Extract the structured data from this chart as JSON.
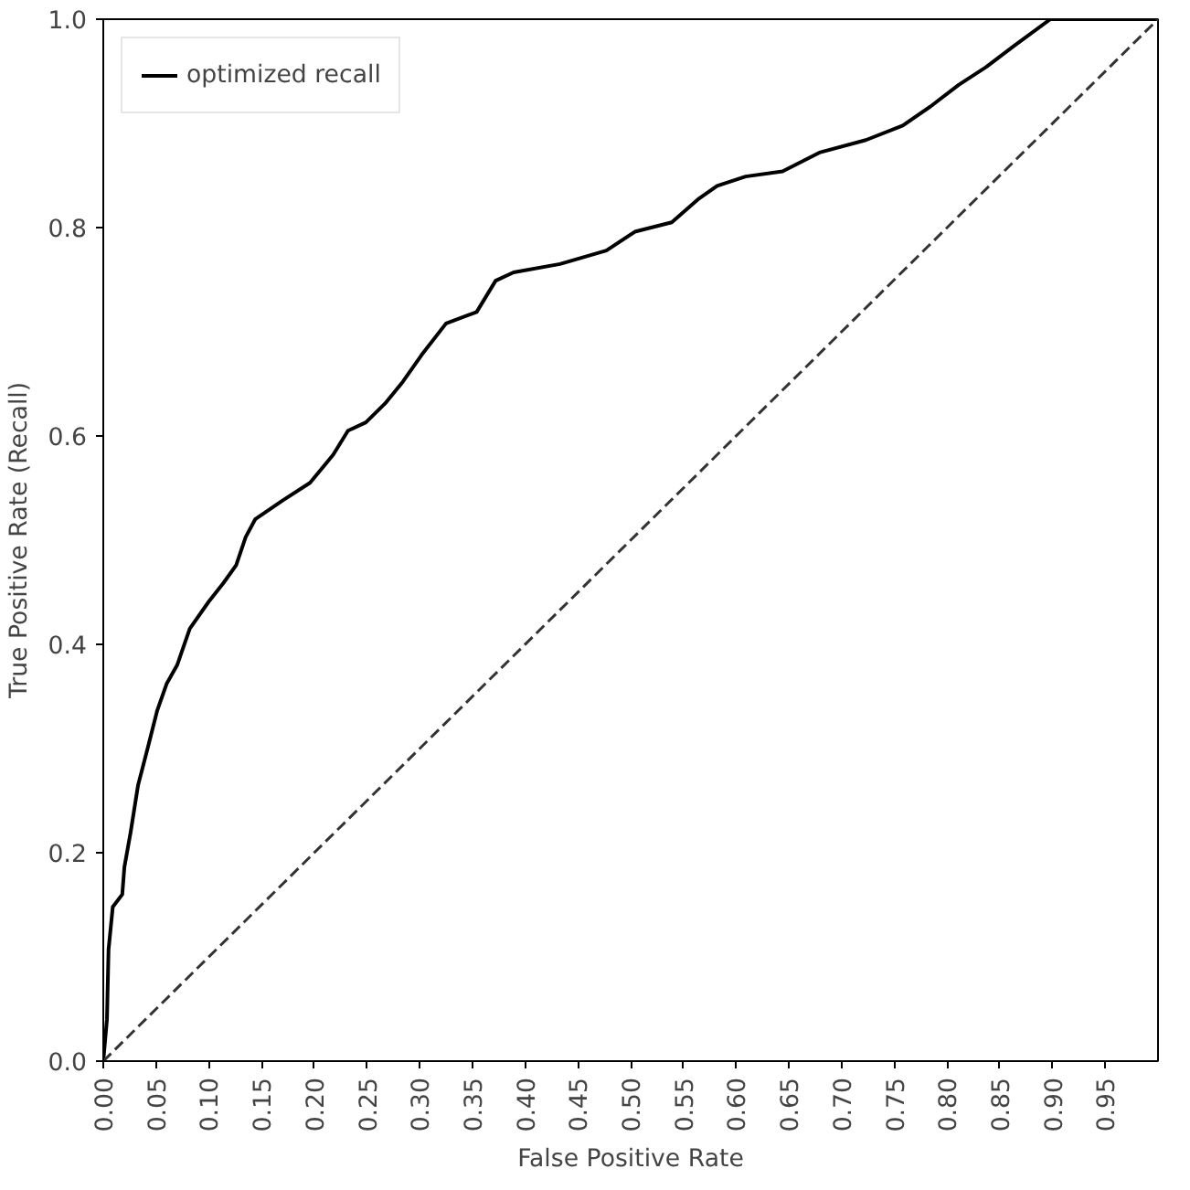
{
  "chart_data": {
    "type": "line",
    "xlabel": "False Positive Rate",
    "ylabel": "True Positive Rate (Recall)",
    "xlim": [
      0,
      1
    ],
    "ylim": [
      0,
      1
    ],
    "xticks": [
      {
        "value": 0,
        "label": "0.00"
      },
      {
        "value": 0.05,
        "label": "0.05"
      },
      {
        "value": 0.1,
        "label": "0.10"
      },
      {
        "value": 0.15,
        "label": "0.15"
      },
      {
        "value": 0.2,
        "label": "0.20"
      },
      {
        "value": 0.25,
        "label": "0.25"
      },
      {
        "value": 0.3,
        "label": "0.30"
      },
      {
        "value": 0.35,
        "label": "0.35"
      },
      {
        "value": 0.4,
        "label": "0.40"
      },
      {
        "value": 0.45,
        "label": "0.45"
      },
      {
        "value": 0.5,
        "label": "0.50"
      },
      {
        "value": 0.55,
        "label": "0.55"
      },
      {
        "value": 0.6,
        "label": "0.60"
      },
      {
        "value": 0.65,
        "label": "0.65"
      },
      {
        "value": 0.7,
        "label": "0.70"
      },
      {
        "value": 0.75,
        "label": "0.75"
      },
      {
        "value": 0.8,
        "label": "0.80"
      },
      {
        "value": 0.85,
        "label": "0.85"
      },
      {
        "value": 0.9,
        "label": "0.90"
      },
      {
        "value": 0.95,
        "label": "0.95"
      }
    ],
    "yticks": [
      {
        "value": 0,
        "label": "0.0"
      },
      {
        "value": 0.2,
        "label": "0.2"
      },
      {
        "value": 0.4,
        "label": "0.4"
      },
      {
        "value": 0.6,
        "label": "0.6"
      },
      {
        "value": 0.8,
        "label": "0.8"
      },
      {
        "value": 1,
        "label": "1.0"
      }
    ],
    "grid": false,
    "legend": "top left",
    "series": [
      {
        "name": "optimized recall",
        "color": "#000000",
        "line_style": "solid",
        "x": [
          0,
          0.0035,
          0.005,
          0.009,
          0.018,
          0.02,
          0.026,
          0.033,
          0.042,
          0.051,
          0.06,
          0.07,
          0.082,
          0.1,
          0.114,
          0.126,
          0.135,
          0.144,
          0.17,
          0.196,
          0.218,
          0.232,
          0.249,
          0.267,
          0.284,
          0.302,
          0.325,
          0.354,
          0.372,
          0.389,
          0.433,
          0.477,
          0.504,
          0.539,
          0.565,
          0.582,
          0.609,
          0.644,
          0.679,
          0.723,
          0.758,
          0.784,
          0.811,
          0.837,
          0.863,
          0.898,
          1.0
        ],
        "values": [
          0,
          0.04,
          0.107,
          0.148,
          0.16,
          0.186,
          0.22,
          0.265,
          0.3,
          0.336,
          0.362,
          0.38,
          0.415,
          0.441,
          0.459,
          0.476,
          0.503,
          0.52,
          0.538,
          0.555,
          0.582,
          0.605,
          0.613,
          0.631,
          0.652,
          0.678,
          0.708,
          0.719,
          0.749,
          0.757,
          0.765,
          0.778,
          0.796,
          0.805,
          0.828,
          0.84,
          0.849,
          0.854,
          0.872,
          0.884,
          0.898,
          0.916,
          0.937,
          0.954,
          0.974,
          1.0,
          1.0
        ]
      },
      {
        "color": "#333333",
        "line_style": "dashed",
        "x": [
          0,
          1
        ],
        "values": [
          0,
          1
        ]
      }
    ]
  }
}
